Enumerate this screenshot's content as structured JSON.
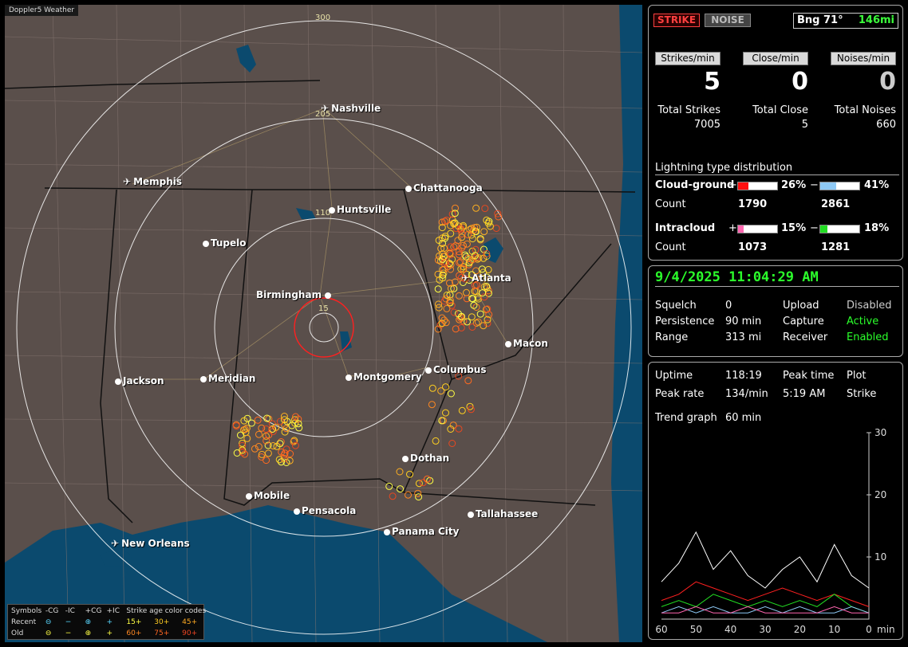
{
  "map": {
    "title": "Doppler5 Weather",
    "ring_labels": [
      "300",
      "205",
      "110",
      "15"
    ],
    "cities": [
      {
        "name": "Nashville",
        "icon": "airport-icon"
      },
      {
        "name": "Memphis",
        "icon": "airport-icon"
      },
      {
        "name": "Chattanooga",
        "icon": "city-dot"
      },
      {
        "name": "Huntsville",
        "icon": "city-dot"
      },
      {
        "name": "Tupelo",
        "icon": "city-dot"
      },
      {
        "name": "Atlanta",
        "icon": "airport-icon"
      },
      {
        "name": "Birmingham",
        "icon": "city-dot"
      },
      {
        "name": "Macon",
        "icon": "city-dot"
      },
      {
        "name": "Jackson",
        "icon": "city-dot"
      },
      {
        "name": "Meridian",
        "icon": "city-dot"
      },
      {
        "name": "Montgomery",
        "icon": "city-dot"
      },
      {
        "name": "Columbus",
        "icon": "city-dot"
      },
      {
        "name": "Dothan",
        "icon": "city-dot"
      },
      {
        "name": "Mobile",
        "icon": "city-dot"
      },
      {
        "name": "Pensacola",
        "icon": "city-dot"
      },
      {
        "name": "Tallahassee",
        "icon": "city-dot"
      },
      {
        "name": "Panama City",
        "icon": "city-dot"
      },
      {
        "name": "New Orleans",
        "icon": "airport-icon"
      }
    ],
    "legend": {
      "title_symbols": "Symbols",
      "cols": [
        "-CG",
        "-IC",
        "+CG",
        "+IC"
      ],
      "age_title": "Strike age color codes",
      "recent_label": "Recent",
      "old_label": "Old",
      "recent_ages": [
        "15+",
        "30+",
        "45+"
      ],
      "old_ages": [
        "60+",
        "75+",
        "90+"
      ]
    }
  },
  "stats": {
    "strike_label": "STRIKE",
    "noise_label": "NOISE",
    "bearing": "Bng 71°",
    "distance": "146mi",
    "rates": [
      {
        "label": "Strikes/min",
        "value": "5",
        "total_label": "Total Strikes",
        "total": "7005",
        "color": "#ffffff"
      },
      {
        "label": "Close/min",
        "value": "0",
        "total_label": "Total Close",
        "total": "5",
        "color": "#ffffff"
      },
      {
        "label": "Noises/min",
        "value": "0",
        "total_label": "Total Noises",
        "total": "660",
        "color": "#cccccc"
      }
    ],
    "distribution_title": "Lightning type distribution",
    "cloud_ground": {
      "label": "Cloud-ground",
      "pos_pct": "26%",
      "neg_pct": "41%",
      "pos_frac": 0.26,
      "neg_frac": 0.41,
      "count_label": "Count",
      "pos_count": "1790",
      "neg_count": "2861",
      "pos_color": "#ff1010",
      "neg_color": "#8ec9f5"
    },
    "intracloud": {
      "label": "Intracloud",
      "pos_pct": "15%",
      "neg_pct": "18%",
      "pos_frac": 0.15,
      "neg_frac": 0.18,
      "count_label": "Count",
      "pos_count": "1073",
      "neg_count": "1281",
      "pos_color": "#ff66b0",
      "neg_color": "#22dd22"
    }
  },
  "status": {
    "datetime": "9/4/2025 11:04:29 AM",
    "squelch_label": "Squelch",
    "squelch": "0",
    "persistence_label": "Persistence",
    "persistence": "90 min",
    "range_label": "Range",
    "range": "313 mi",
    "upload_label": "Upload",
    "upload": "Disabled",
    "capture_label": "Capture",
    "capture": "Active",
    "receiver_label": "Receiver",
    "receiver": "Enabled"
  },
  "trend": {
    "uptime_label": "Uptime",
    "uptime": "118:19",
    "peak_time_label": "Peak time",
    "peak_time": "5:19 AM",
    "plot_label": "Plot",
    "plot": "Strike",
    "peak_rate_label": "Peak rate",
    "peak_rate": "134/min",
    "trend_label": "Trend graph",
    "trend_window": "60 min",
    "y_ticks": [
      "30",
      "20",
      "10"
    ],
    "x_ticks": [
      "60",
      "50",
      "40",
      "30",
      "20",
      "10",
      "0"
    ],
    "x_unit": "min"
  },
  "chart_data": {
    "type": "line",
    "x": [
      60,
      55,
      50,
      45,
      40,
      35,
      30,
      25,
      20,
      15,
      10,
      5,
      0
    ],
    "ylim": [
      0,
      30
    ],
    "series": [
      {
        "values": [
          6,
          9,
          14,
          8,
          11,
          7,
          5,
          8,
          10,
          6,
          12,
          7,
          5
        ],
        "color": "#ffffff"
      },
      {
        "values": [
          3,
          4,
          6,
          5,
          4,
          3,
          4,
          5,
          4,
          3,
          4,
          3,
          2
        ],
        "color": "#ff2020"
      },
      {
        "values": [
          2,
          3,
          2,
          4,
          3,
          2,
          3,
          2,
          3,
          2,
          4,
          2,
          1
        ],
        "color": "#22dd22"
      },
      {
        "values": [
          1,
          2,
          1,
          2,
          1,
          1,
          2,
          1,
          2,
          1,
          1,
          2,
          1
        ],
        "color": "#8ec9f5"
      },
      {
        "values": [
          1,
          1,
          2,
          1,
          1,
          2,
          1,
          1,
          1,
          1,
          2,
          1,
          1
        ],
        "color": "#ff66b0"
      }
    ]
  }
}
